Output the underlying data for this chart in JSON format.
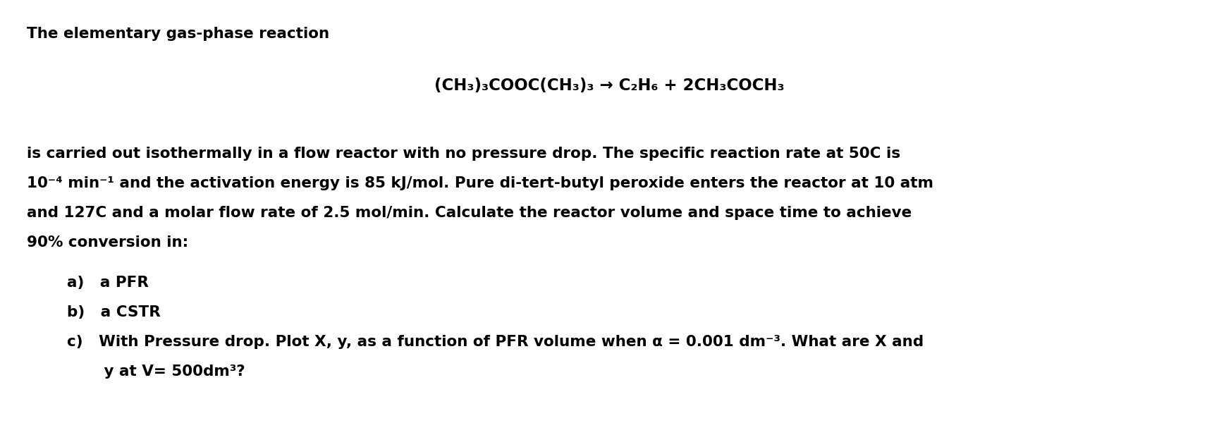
{
  "background_color": "#ffffff",
  "title_line": "The elementary gas-phase reaction",
  "reaction_equation": "(CH₃)₃COOC(CH₃)₃ → C₂H₆ + 2CH₃COCH₃",
  "body_text_line1": "is carried out isothermally in a flow reactor with no pressure drop. The specific reaction rate at 50C is",
  "body_text_line2": "10⁻⁴ min⁻¹ and the activation energy is 85 kJ/mol. Pure di-tert-butyl peroxide enters the reactor at 10 atm",
  "body_text_line3": "and 127C and a molar flow rate of 2.5 mol/min. Calculate the reactor volume and space time to achieve",
  "body_text_line4": "90% conversion in:",
  "item_a": "a)   a PFR",
  "item_b": "b)   a CSTR",
  "item_c_line1": "c)   With Pressure drop. Plot X, y, as a function of PFR volume when α = 0.001 dm⁻³. What are X and",
  "item_c_line2": "       y at V= 500dm³?",
  "text_color": "#000000",
  "font_size": 15.5,
  "font_size_reaction": 16.5,
  "figwidth": 17.29,
  "figheight": 6.17,
  "dpi": 100
}
